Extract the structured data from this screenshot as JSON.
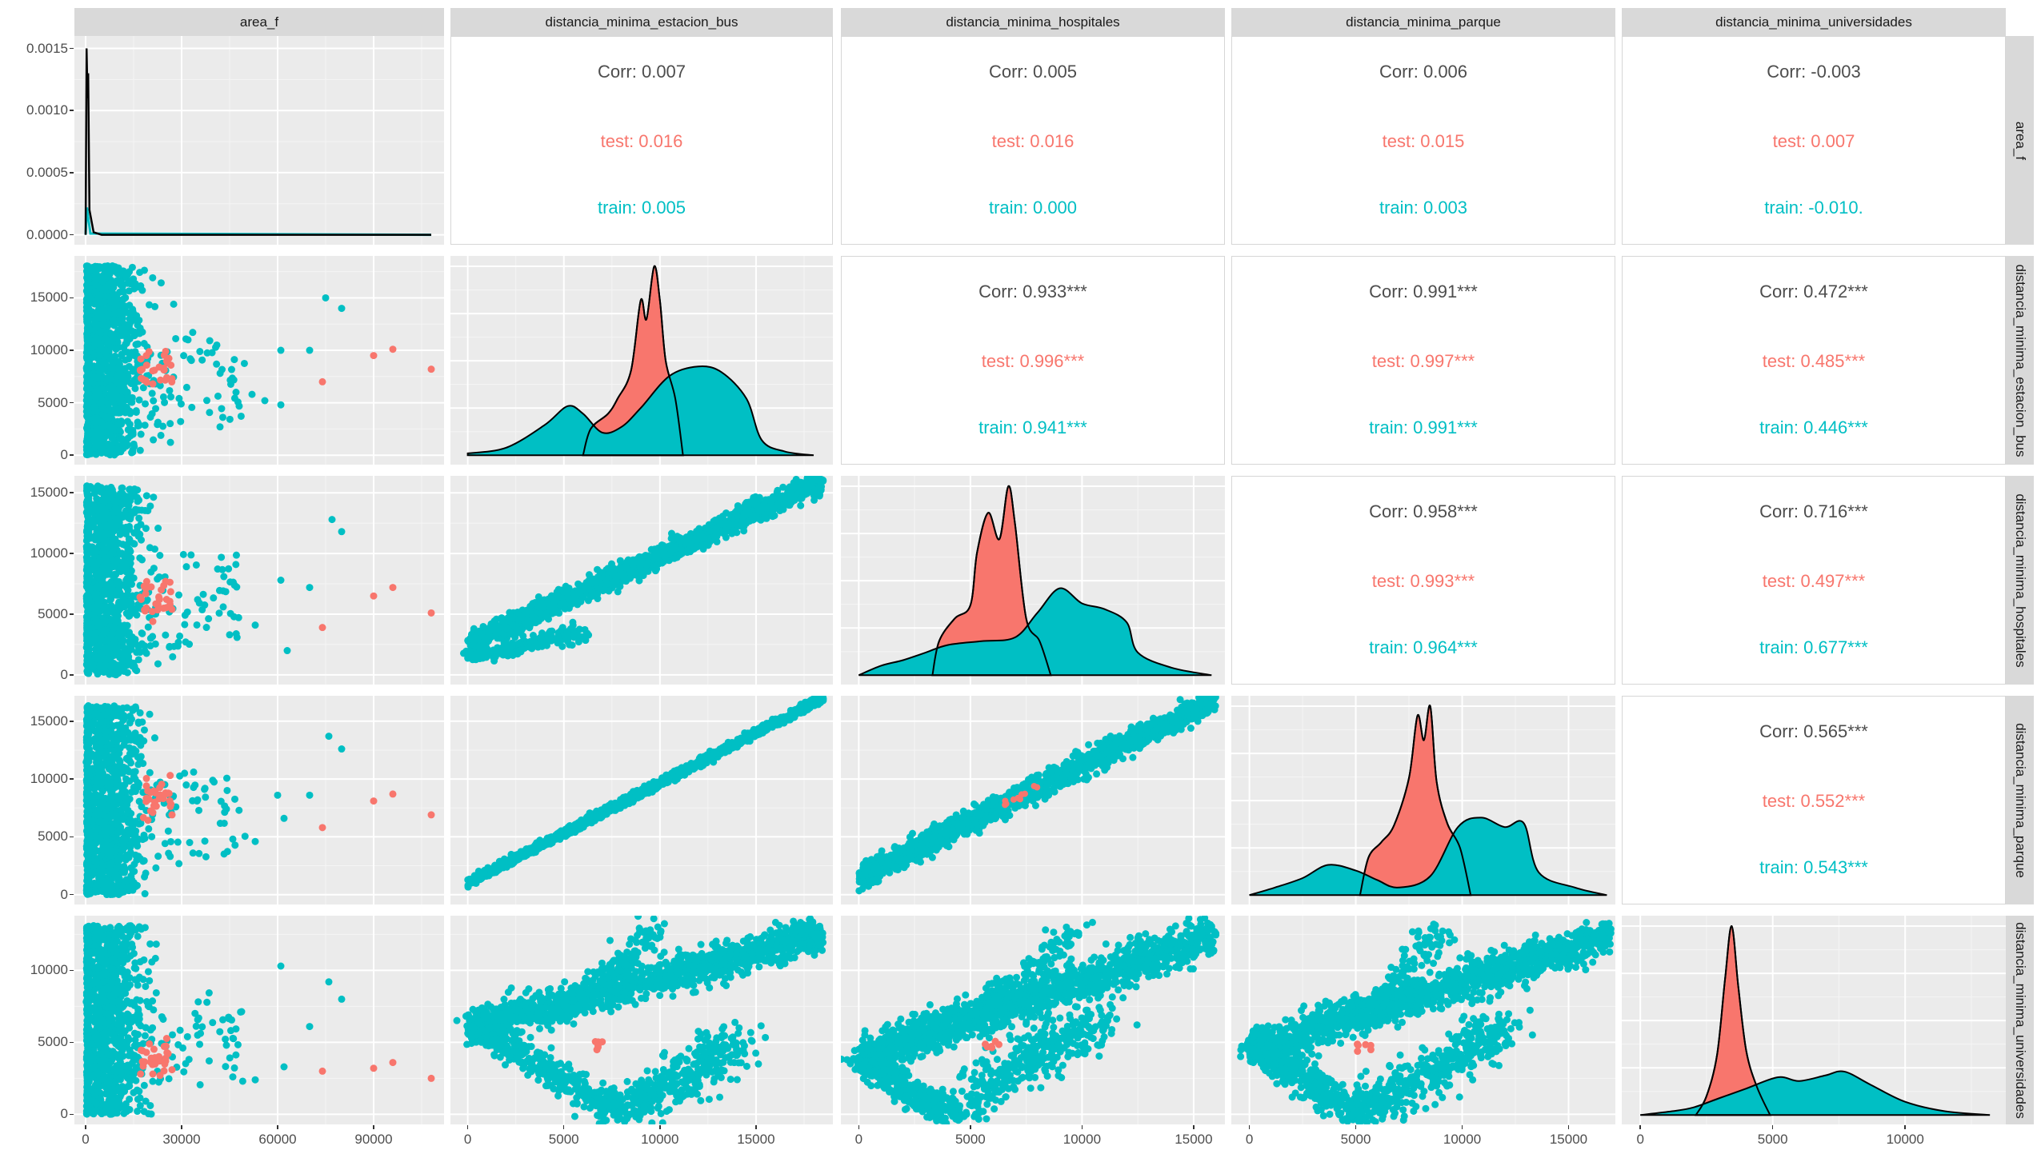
{
  "chart_data": {
    "type": "scatter_matrix",
    "variables": [
      "area_f",
      "distancia_minima_estacion_bus",
      "distancia_minima_hospitales",
      "distancia_minima_parque",
      "distancia_minima_universidades"
    ],
    "groups": [
      {
        "name": "test",
        "color": "#F8766D"
      },
      {
        "name": "train",
        "color": "#00BFC4"
      }
    ],
    "axes": {
      "area_f": {
        "range": [
          -3500,
          112000
        ],
        "ticks": [
          0,
          30000,
          60000,
          90000
        ],
        "tick_labels": [
          "0",
          "30000",
          "60000",
          "90000"
        ]
      },
      "distancia_minima_estacion_bus": {
        "range": [
          -900,
          19000
        ],
        "ticks": [
          0,
          5000,
          10000,
          15000
        ],
        "tick_labels": [
          "0",
          "5000",
          "10000",
          "15000"
        ]
      },
      "distancia_minima_hospitales": {
        "range": [
          -800,
          16400
        ],
        "ticks": [
          0,
          5000,
          10000,
          15000
        ],
        "tick_labels": [
          "0",
          "5000",
          "10000",
          "15000"
        ]
      },
      "distancia_minima_parque": {
        "range": [
          -850,
          17200
        ],
        "ticks": [
          0,
          5000,
          10000,
          15000
        ],
        "tick_labels": [
          "0",
          "5000",
          "10000",
          "15000"
        ]
      },
      "distancia_minima_universidades": {
        "range": [
          -700,
          13800
        ],
        "ticks": [
          0,
          5000,
          10000
        ],
        "tick_labels": [
          "0",
          "5000",
          "10000"
        ]
      }
    },
    "area_f_density_axis": {
      "range": [
        -8e-05,
        0.0016
      ],
      "ticks": [
        0,
        0.0005,
        0.001,
        0.0015
      ],
      "tick_labels": [
        "0.0000",
        "0.0005",
        "0.0010",
        "0.0015"
      ]
    },
    "correlations": [
      {
        "row": "area_f",
        "col": "distancia_minima_estacion_bus",
        "corr": "Corr: 0.007",
        "test": "test: 0.016",
        "train": "train: 0.005"
      },
      {
        "row": "area_f",
        "col": "distancia_minima_hospitales",
        "corr": "Corr: 0.005",
        "test": "test: 0.016",
        "train": "train: 0.000"
      },
      {
        "row": "area_f",
        "col": "distancia_minima_parque",
        "corr": "Corr: 0.006",
        "test": "test: 0.015",
        "train": "train: 0.003"
      },
      {
        "row": "area_f",
        "col": "distancia_minima_universidades",
        "corr": "Corr: -0.003",
        "test": "test: 0.007",
        "train": "train: -0.010."
      },
      {
        "row": "distancia_minima_estacion_bus",
        "col": "distancia_minima_hospitales",
        "corr": "Corr: 0.933***",
        "test": "test: 0.996***",
        "train": "train: 0.941***"
      },
      {
        "row": "distancia_minima_estacion_bus",
        "col": "distancia_minima_parque",
        "corr": "Corr: 0.991***",
        "test": "test: 0.997***",
        "train": "train: 0.991***"
      },
      {
        "row": "distancia_minima_estacion_bus",
        "col": "distancia_minima_universidades",
        "corr": "Corr: 0.472***",
        "test": "test: 0.485***",
        "train": "train: 0.446***"
      },
      {
        "row": "distancia_minima_hospitales",
        "col": "distancia_minima_parque",
        "corr": "Corr: 0.958***",
        "test": "test: 0.993***",
        "train": "train: 0.964***"
      },
      {
        "row": "distancia_minima_hospitales",
        "col": "distancia_minima_universidades",
        "corr": "Corr: 0.716***",
        "test": "test: 0.497***",
        "train": "train: 0.677***"
      },
      {
        "row": "distancia_minima_parque",
        "col": "distancia_minima_universidades",
        "corr": "Corr: 0.565***",
        "test": "test: 0.552***",
        "train": "train: 0.543***"
      }
    ],
    "densities": {
      "distancia_minima_estacion_bus": {
        "train": [
          [
            0,
            0.01
          ],
          [
            2000,
            0.04
          ],
          [
            4000,
            0.16
          ],
          [
            5200,
            0.26
          ],
          [
            6000,
            0.22
          ],
          [
            7000,
            0.12
          ],
          [
            8000,
            0.15
          ],
          [
            9000,
            0.25
          ],
          [
            10500,
            0.42
          ],
          [
            12000,
            0.47
          ],
          [
            13200,
            0.44
          ],
          [
            14500,
            0.3
          ],
          [
            15300,
            0.08
          ],
          [
            16500,
            0.02
          ],
          [
            18000,
            0.0
          ]
        ],
        "test": [
          [
            6000,
            0.0
          ],
          [
            6400,
            0.14
          ],
          [
            7300,
            0.22
          ],
          [
            7800,
            0.3
          ],
          [
            8500,
            0.45
          ],
          [
            9000,
            0.82
          ],
          [
            9300,
            0.72
          ],
          [
            9700,
            1.0
          ],
          [
            10000,
            0.82
          ],
          [
            10300,
            0.5
          ],
          [
            10800,
            0.3
          ],
          [
            11200,
            0.0
          ]
        ]
      },
      "distancia_minima_hospitales": {
        "train": [
          [
            0,
            0.0
          ],
          [
            1000,
            0.05
          ],
          [
            2000,
            0.08
          ],
          [
            3000,
            0.12
          ],
          [
            4000,
            0.16
          ],
          [
            5500,
            0.18
          ],
          [
            7000,
            0.2
          ],
          [
            8000,
            0.33
          ],
          [
            9000,
            0.46
          ],
          [
            10000,
            0.38
          ],
          [
            11000,
            0.35
          ],
          [
            12000,
            0.28
          ],
          [
            12500,
            0.12
          ],
          [
            14000,
            0.04
          ],
          [
            15800,
            0.0
          ]
        ],
        "test": [
          [
            3300,
            0.0
          ],
          [
            3600,
            0.18
          ],
          [
            4300,
            0.3
          ],
          [
            5000,
            0.37
          ],
          [
            5300,
            0.65
          ],
          [
            5800,
            0.86
          ],
          [
            6300,
            0.72
          ],
          [
            6700,
            1.0
          ],
          [
            7000,
            0.8
          ],
          [
            7500,
            0.3
          ],
          [
            8100,
            0.18
          ],
          [
            8600,
            0.0
          ]
        ]
      },
      "distancia_minima_parque": {
        "train": [
          [
            0,
            0.0
          ],
          [
            1200,
            0.04
          ],
          [
            2500,
            0.09
          ],
          [
            3700,
            0.16
          ],
          [
            5000,
            0.13
          ],
          [
            6000,
            0.08
          ],
          [
            7000,
            0.04
          ],
          [
            8500,
            0.1
          ],
          [
            9800,
            0.36
          ],
          [
            10900,
            0.41
          ],
          [
            12000,
            0.36
          ],
          [
            12900,
            0.38
          ],
          [
            13600,
            0.12
          ],
          [
            15300,
            0.04
          ],
          [
            16800,
            0.0
          ]
        ],
        "test": [
          [
            5200,
            0.0
          ],
          [
            5600,
            0.2
          ],
          [
            6200,
            0.28
          ],
          [
            6800,
            0.37
          ],
          [
            7500,
            0.62
          ],
          [
            7900,
            0.95
          ],
          [
            8200,
            0.82
          ],
          [
            8500,
            1.0
          ],
          [
            8800,
            0.6
          ],
          [
            9300,
            0.38
          ],
          [
            9900,
            0.25
          ],
          [
            10400,
            0.0
          ]
        ]
      },
      "distancia_minima_universidades": {
        "train": [
          [
            0,
            0.0
          ],
          [
            1200,
            0.02
          ],
          [
            2000,
            0.04
          ],
          [
            3000,
            0.09
          ],
          [
            4000,
            0.14
          ],
          [
            5200,
            0.2
          ],
          [
            6000,
            0.18
          ],
          [
            7000,
            0.21
          ],
          [
            7700,
            0.23
          ],
          [
            8700,
            0.16
          ],
          [
            10000,
            0.07
          ],
          [
            11500,
            0.02
          ],
          [
            13200,
            0.0
          ]
        ],
        "test": [
          [
            2100,
            0.0
          ],
          [
            2500,
            0.1
          ],
          [
            2900,
            0.32
          ],
          [
            3200,
            0.72
          ],
          [
            3450,
            1.0
          ],
          [
            3700,
            0.68
          ],
          [
            4000,
            0.34
          ],
          [
            4400,
            0.15
          ],
          [
            4900,
            0.0
          ]
        ]
      }
    },
    "area_f_density": {
      "combined": [
        [
          0,
          0.0
        ],
        [
          300,
          0.0015
        ],
        [
          600,
          0.0011
        ],
        [
          800,
          0.0013
        ],
        [
          1200,
          0.0002
        ],
        [
          2500,
          2e-05
        ],
        [
          5000,
          0.0
        ],
        [
          108000,
          0.0
        ]
      ],
      "test": [
        [
          0,
          0.0
        ],
        [
          400,
          0.00022
        ],
        [
          1500,
          1e-05
        ],
        [
          108000,
          0.0
        ]
      ]
    },
    "scatter_note": "dense point clouds approximated per panel"
  }
}
